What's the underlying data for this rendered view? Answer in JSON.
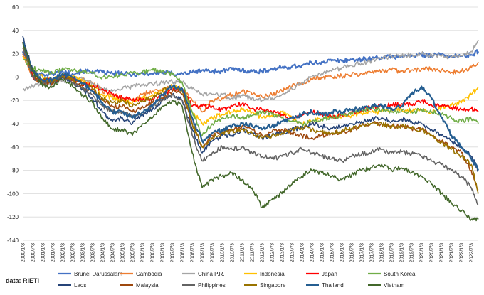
{
  "chart_data": {
    "type": "line",
    "source": "data: RIETI",
    "ylim": [
      -140,
      60
    ],
    "yticks": [
      60,
      40,
      20,
      0,
      -20,
      -40,
      -60,
      -80,
      -100,
      -120,
      -140
    ],
    "x_tick_labels": [
      "2000/1/3",
      "2000/7/3",
      "2001/1/3",
      "2001/7/3",
      "2002/1/3",
      "2002/7/3",
      "2003/1/3",
      "2003/7/3",
      "2004/1/3",
      "2004/7/3",
      "2005/1/3",
      "2005/7/3",
      "2006/1/3",
      "2006/7/3",
      "2007/1/3",
      "2007/7/3",
      "2008/1/3",
      "2008/7/3",
      "2009/1/3",
      "2009/7/3",
      "2010/1/3",
      "2010/7/3",
      "2011/1/3",
      "2011/7/3",
      "2012/1/3",
      "2012/7/3",
      "2013/1/3",
      "2013/7/3",
      "2014/1/3",
      "2014/7/3",
      "2015/1/3",
      "2015/7/3",
      "2016/1/3",
      "2016/7/3",
      "2017/1/3",
      "2017/7/3",
      "2018/1/3",
      "2018/7/3",
      "2019/1/3",
      "2019/7/3",
      "2020/1/3",
      "2020/7/3",
      "2021/1/3",
      "2021/7/3",
      "2022/1/3",
      "2022/7/3"
    ],
    "grid": true,
    "legend_position": "bottom",
    "x": [
      2000.0,
      2000.5,
      2001.0,
      2001.5,
      2002.0,
      2002.5,
      2003.0,
      2003.5,
      2004.0,
      2004.5,
      2005.0,
      2005.5,
      2006.0,
      2006.5,
      2007.0,
      2007.5,
      2008.0,
      2008.5,
      2009.0,
      2009.5,
      2010.0,
      2010.5,
      2011.0,
      2011.5,
      2012.0,
      2012.5,
      2013.0,
      2013.5,
      2014.0,
      2014.5,
      2015.0,
      2015.5,
      2016.0,
      2016.5,
      2017.0,
      2017.5,
      2018.0,
      2018.5,
      2019.0,
      2019.5,
      2020.0,
      2020.5,
      2021.0,
      2021.5,
      2022.0,
      2022.5,
      2022.85
    ],
    "series": [
      {
        "name": "Brunei Darussalam",
        "color": "#4472C4",
        "width": 2.2,
        "values": [
          22,
          5,
          2,
          3,
          5,
          3,
          5,
          5,
          4,
          3,
          3,
          2,
          3,
          3,
          4,
          3,
          3,
          4,
          6,
          5,
          5,
          7,
          6,
          5,
          5,
          7,
          8,
          9,
          10,
          12,
          13,
          14,
          14,
          15,
          15,
          16,
          17,
          17,
          18,
          18,
          19,
          19,
          19,
          18,
          18,
          19,
          22
        ]
      },
      {
        "name": "Cambodia",
        "color": "#ED7D31",
        "width": 1.6,
        "values": [
          20,
          0,
          -5,
          -3,
          -2,
          -3,
          -2,
          -5,
          -12,
          -15,
          -18,
          -20,
          -15,
          -12,
          -10,
          -8,
          -10,
          -20,
          -30,
          -20,
          -18,
          -15,
          -12,
          -15,
          -17,
          -15,
          -12,
          -8,
          -5,
          -2,
          0,
          0,
          1,
          2,
          3,
          4,
          5,
          6,
          5,
          6,
          7,
          7,
          6,
          4,
          5,
          8,
          13
        ]
      },
      {
        "name": "China P.R.",
        "color": "#A5A5A5",
        "width": 1.6,
        "values": [
          -10,
          -8,
          -6,
          -4,
          -3,
          -2,
          -2,
          -5,
          -10,
          -12,
          -10,
          -8,
          -7,
          -6,
          -5,
          -4,
          -5,
          -10,
          -15,
          -15,
          -15,
          -18,
          -16,
          -18,
          -20,
          -18,
          -15,
          -10,
          -5,
          0,
          3,
          5,
          8,
          10,
          12,
          14,
          16,
          18,
          18,
          19,
          20,
          19,
          18,
          17,
          18,
          22,
          32
        ]
      },
      {
        "name": "Indonesia",
        "color": "#FFC000",
        "width": 1.6,
        "values": [
          18,
          5,
          0,
          -3,
          2,
          0,
          -3,
          -8,
          -15,
          -18,
          -20,
          -22,
          -18,
          -15,
          -12,
          -8,
          -10,
          -30,
          -40,
          -35,
          -32,
          -30,
          -28,
          -30,
          -35,
          -33,
          -30,
          -35,
          -40,
          -38,
          -36,
          -34,
          -35,
          -33,
          -31,
          -30,
          -30,
          -28,
          -28,
          -29,
          -28,
          -30,
          -26,
          -24,
          -22,
          -15,
          -9
        ]
      },
      {
        "name": "Japan",
        "color": "#FF0000",
        "width": 1.6,
        "values": [
          30,
          0,
          -3,
          -3,
          0,
          -2,
          -5,
          -8,
          -10,
          -15,
          -18,
          -20,
          -20,
          -18,
          -15,
          -12,
          -10,
          -25,
          -25,
          -25,
          -28,
          -25,
          -23,
          -27,
          -28,
          -30,
          -32,
          -35,
          -33,
          -30,
          -32,
          -34,
          -33,
          -30,
          -28,
          -26,
          -25,
          -24,
          -23,
          -24,
          -20,
          -24,
          -25,
          -26,
          -28,
          -27,
          -30
        ]
      },
      {
        "name": "South Korea",
        "color": "#70AD47",
        "width": 1.6,
        "values": [
          15,
          8,
          5,
          3,
          8,
          5,
          5,
          3,
          0,
          0,
          2,
          3,
          4,
          6,
          5,
          2,
          -5,
          -30,
          -50,
          -40,
          -35,
          -33,
          -35,
          -33,
          -30,
          -32,
          -35,
          -38,
          -40,
          -38,
          -36,
          -35,
          -33,
          -30,
          -28,
          -27,
          -28,
          -30,
          -29,
          -30,
          -28,
          -30,
          -32,
          -35,
          -38,
          -36,
          -40
        ]
      },
      {
        "name": "Laos",
        "color": "#264478",
        "width": 1.6,
        "values": [
          35,
          5,
          -5,
          -5,
          0,
          -5,
          -10,
          -18,
          -30,
          -38,
          -35,
          -40,
          -32,
          -28,
          -20,
          -15,
          -20,
          -45,
          -65,
          -55,
          -50,
          -50,
          -45,
          -48,
          -52,
          -50,
          -48,
          -45,
          -43,
          -40,
          -42,
          -44,
          -42,
          -40,
          -38,
          -36,
          -35,
          -38,
          -36,
          -38,
          -40,
          -45,
          -50,
          -55,
          -60,
          -68,
          -80
        ]
      },
      {
        "name": "Malaysia",
        "color": "#9E480E",
        "width": 1.6,
        "values": [
          25,
          0,
          -5,
          -5,
          0,
          -3,
          -8,
          -12,
          -20,
          -25,
          -25,
          -30,
          -25,
          -22,
          -18,
          -12,
          -15,
          -40,
          -60,
          -50,
          -47,
          -45,
          -42,
          -45,
          -50,
          -47,
          -45,
          -48,
          -50,
          -52,
          -50,
          -48,
          -48,
          -45,
          -42,
          -40,
          -40,
          -42,
          -42,
          -44,
          -45,
          -50,
          -55,
          -60,
          -65,
          -80,
          -97
        ]
      },
      {
        "name": "Philippines",
        "color": "#636363",
        "width": 1.6,
        "values": [
          25,
          0,
          -5,
          -3,
          0,
          -5,
          -10,
          -15,
          -25,
          -30,
          -30,
          -35,
          -30,
          -25,
          -20,
          -15,
          -20,
          -50,
          -72,
          -65,
          -60,
          -62,
          -60,
          -65,
          -68,
          -70,
          -68,
          -65,
          -62,
          -65,
          -68,
          -70,
          -72,
          -68,
          -66,
          -64,
          -62,
          -65,
          -64,
          -66,
          -68,
          -72,
          -75,
          -80,
          -85,
          -95,
          -110
        ]
      },
      {
        "name": "Singapore",
        "color": "#997300",
        "width": 1.6,
        "values": [
          25,
          5,
          -3,
          -3,
          2,
          -2,
          -5,
          -10,
          -18,
          -22,
          -20,
          -25,
          -20,
          -18,
          -12,
          -8,
          -12,
          -40,
          -60,
          -52,
          -48,
          -46,
          -45,
          -48,
          -52,
          -50,
          -48,
          -45,
          -43,
          -45,
          -47,
          -48,
          -46,
          -44,
          -42,
          -40,
          -40,
          -43,
          -42,
          -44,
          -45,
          -50,
          -56,
          -62,
          -68,
          -75,
          -100
        ]
      },
      {
        "name": "Thailand",
        "color": "#255E91",
        "width": 2.2,
        "values": [
          30,
          5,
          -3,
          -2,
          3,
          0,
          -5,
          -12,
          -22,
          -30,
          -30,
          -35,
          -30,
          -25,
          -15,
          -8,
          -10,
          -35,
          -55,
          -48,
          -45,
          -42,
          -40,
          -42,
          -45,
          -42,
          -38,
          -35,
          -32,
          -30,
          -32,
          -30,
          -30,
          -28,
          -27,
          -25,
          -25,
          -27,
          -25,
          -15,
          -8,
          -18,
          -35,
          -50,
          -60,
          -70,
          -80
        ]
      },
      {
        "name": "Vietnam",
        "color": "#43682B",
        "width": 1.6,
        "values": [
          30,
          5,
          -8,
          -8,
          -2,
          -8,
          -15,
          -22,
          -35,
          -45,
          -45,
          -50,
          -40,
          -35,
          -25,
          -20,
          -25,
          -65,
          -95,
          -88,
          -85,
          -82,
          -88,
          -95,
          -112,
          -105,
          -100,
          -92,
          -85,
          -80,
          -82,
          -85,
          -88,
          -84,
          -80,
          -78,
          -75,
          -80,
          -78,
          -82,
          -85,
          -92,
          -100,
          -108,
          -115,
          -122,
          -122
        ]
      }
    ]
  }
}
